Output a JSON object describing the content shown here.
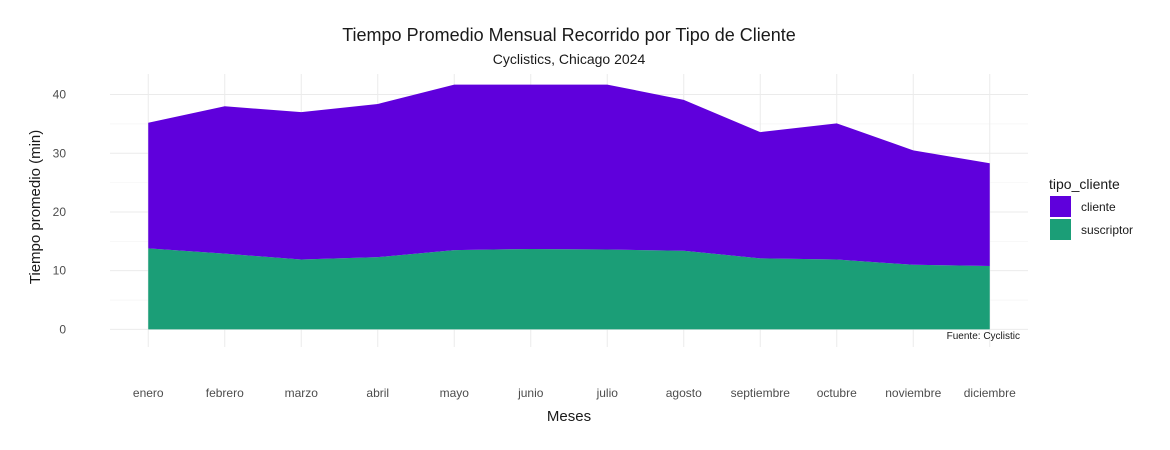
{
  "chart_data": {
    "type": "area",
    "stacked": true,
    "title": "Tiempo Promedio Mensual Recorrido por Tipo de Cliente",
    "subtitle": "Cyclistics, Chicago 2024",
    "xlabel": "Meses",
    "ylabel": "Tiempo promedio (min)",
    "caption": "Fuente: Cyclistic",
    "categories": [
      "enero",
      "febrero",
      "marzo",
      "abril",
      "mayo",
      "junio",
      "julio",
      "agosto",
      "septiembre",
      "octubre",
      "noviembre",
      "diciembre"
    ],
    "ylim": [
      -3,
      43.5
    ],
    "yticks": [
      0,
      10,
      20,
      30,
      40
    ],
    "grid": true,
    "legend": {
      "title": "tipo_cliente",
      "position": "right"
    },
    "series": [
      {
        "name": "cliente",
        "color": "#5f00dc",
        "values": [
          21.4,
          25.1,
          25.1,
          26.1,
          28.2,
          28.0,
          28.1,
          25.7,
          21.5,
          23.2,
          19.5,
          17.5
        ]
      },
      {
        "name": "suscriptor",
        "color": "#1b9e77",
        "values": [
          13.8,
          12.9,
          11.9,
          12.3,
          13.5,
          13.7,
          13.6,
          13.4,
          12.1,
          11.9,
          11.0,
          10.8
        ]
      }
    ]
  }
}
